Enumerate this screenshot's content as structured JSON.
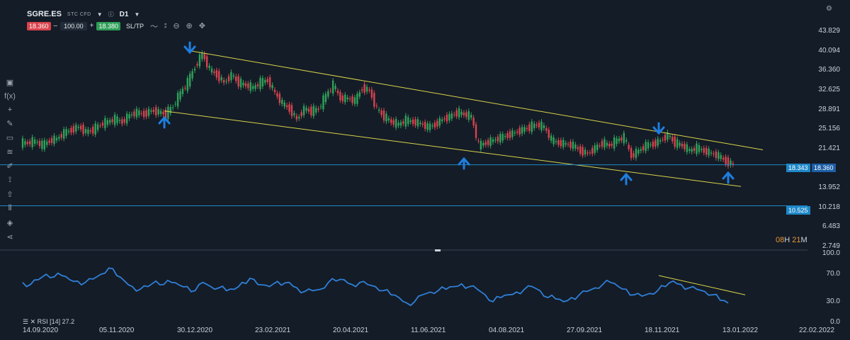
{
  "header": {
    "symbol": "SGRE.ES",
    "type": "STC CFD",
    "info_icon": "info-icon",
    "timeframe": "D1"
  },
  "trade": {
    "sell": "18.360",
    "minus": "–",
    "qty": "100.00",
    "plus": "+",
    "buy": "18.380",
    "sltp": "SL/TP"
  },
  "price_axis": [
    "43.829",
    "40.094",
    "36.360",
    "32.625",
    "28.891",
    "25.156",
    "21.421",
    "18.360",
    "13.952",
    "10.218",
    "6.483",
    "2.749"
  ],
  "rsi_axis": [
    "100.0",
    "70.0",
    "30.0",
    "0.0"
  ],
  "date_axis": [
    "14.09.2020",
    "05.11.2020",
    "30.12.2020",
    "23.02.2021",
    "20.04.2021",
    "11.06.2021",
    "04.08.2021",
    "27.09.2021",
    "18.11.2021",
    "13.01.2022",
    "22.02.2022"
  ],
  "hlines": [
    {
      "label": "18.343",
      "color": "#1e88c8"
    },
    {
      "label": "10.525",
      "color": "#1e88c8"
    }
  ],
  "current_price": {
    "label": "18.360",
    "color": "#1d5fa6"
  },
  "timer": {
    "h": "08",
    "hs": "H",
    "m": "21",
    "ms": "M"
  },
  "rsi": {
    "label": "RSI [14] 27.2"
  },
  "colors": {
    "bg": "#141c27",
    "up": "#2fa35a",
    "down": "#d9434e",
    "channel": "#d8d34a",
    "rsi": "#2f7fd6",
    "arrow": "#1e7ee0"
  },
  "chart_data": {
    "type": "candlestick",
    "approx_closes": [
      22.5,
      22.8,
      22.0,
      22.9,
      23.3,
      24.4,
      25.0,
      25.6,
      24.6,
      25.0,
      26.0,
      26.5,
      27.0,
      26.5,
      27.8,
      28.3,
      28.0,
      28.7,
      28.4,
      28.0,
      29.5,
      32.0,
      34.0,
      37.0,
      39.5,
      36.5,
      35.5,
      34.0,
      35.5,
      34.0,
      33.5,
      33.0,
      34.0,
      34.5,
      32.0,
      30.0,
      29.0,
      27.0,
      29.0,
      28.5,
      29.0,
      31.5,
      33.5,
      31.0,
      31.0,
      30.5,
      33.0,
      32.5,
      29.0,
      27.5,
      26.5,
      26.0,
      26.8,
      26.5,
      26.2,
      25.5,
      26.0,
      27.0,
      27.5,
      28.3,
      28.0,
      27.5,
      22.0,
      22.5,
      23.0,
      23.5,
      24.0,
      24.5,
      25.0,
      25.5,
      26.0,
      25.5,
      23.0,
      22.5,
      22.3,
      22.0,
      21.0,
      20.5,
      21.5,
      22.5,
      22.0,
      23.0,
      23.5,
      20.0,
      21.0,
      22.0,
      22.3,
      23.0,
      24.0,
      22.5,
      22.0,
      21.0,
      21.5,
      21.0,
      20.5,
      20.0,
      19.0,
      18.4
    ],
    "channel_upper": [
      [
        "30.12.2020",
        40.09
      ],
      [
        "~02.2022",
        21.2
      ]
    ],
    "channel_lower": [
      [
        "~12.2020",
        28.6
      ],
      [
        "~02.2022",
        14.2
      ]
    ],
    "rsi_values": [
      58,
      55,
      62,
      70,
      66,
      68,
      62,
      60,
      58,
      63,
      70,
      79,
      68,
      60,
      52,
      48,
      52,
      60,
      55,
      58,
      54,
      52,
      46,
      58,
      52,
      50,
      46,
      48,
      58,
      64,
      55,
      54,
      56,
      54,
      58,
      50,
      45,
      46,
      48,
      58,
      60,
      62,
      55,
      58,
      55,
      52,
      46,
      40,
      36,
      28,
      30,
      40,
      44,
      46,
      48,
      52,
      56,
      52,
      48,
      40,
      30,
      36,
      40,
      44,
      48,
      52,
      46,
      36,
      34,
      30,
      36,
      40,
      45,
      50,
      55,
      58,
      52,
      48,
      40,
      38,
      42,
      46,
      52,
      60,
      55,
      50,
      48,
      45,
      40,
      32,
      28
    ],
    "rsi_trendline": [
      [
        70
      ],
      [
        40
      ]
    ],
    "rsi_ylim": [
      0,
      100
    ],
    "ylim": [
      2.749,
      43.829
    ]
  }
}
